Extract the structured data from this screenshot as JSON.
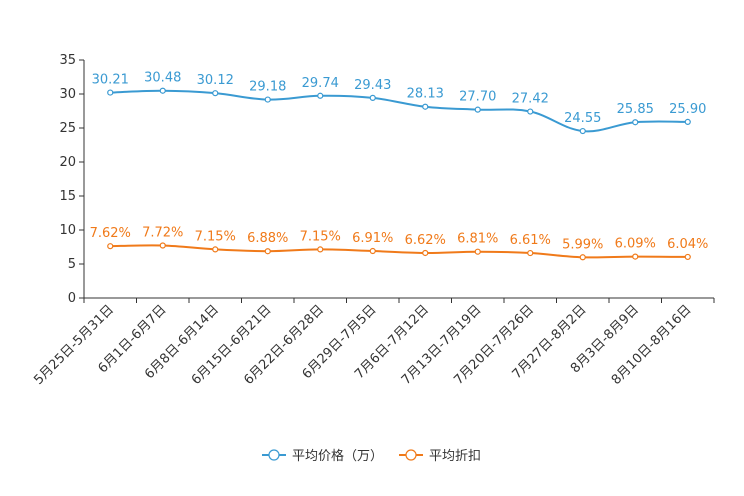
{
  "chart_data": {
    "type": "line",
    "title": "",
    "xlabel": "",
    "ylabel": "",
    "ylim": [
      0,
      35
    ],
    "yticks": [
      0,
      5,
      10,
      15,
      20,
      25,
      30,
      35
    ],
    "grid": false,
    "legend_position": "bottom-center",
    "categories": [
      "5月25日-5月31日",
      "6月1日-6月7日",
      "6月8日-6月14日",
      "6月15日-6月21日",
      "6月22日-6月28日",
      "6月29日-7月5日",
      "7月6日-7月12日",
      "7月13日-7月19日",
      "7月20日-7月26日",
      "7月27日-8月2日",
      "8月3日-8月9日",
      "8月10日-8月16日"
    ],
    "series": [
      {
        "name": "平均价格（万）",
        "color": "#3a9ad2",
        "values": [
          30.21,
          30.48,
          30.12,
          29.18,
          29.74,
          29.43,
          28.13,
          27.7,
          27.42,
          24.55,
          25.85,
          25.9
        ],
        "labels": [
          "30.21",
          "30.48",
          "30.12",
          "29.18",
          "29.74",
          "29.43",
          "28.13",
          "27.70",
          "27.42",
          "24.55",
          "25.85",
          "25.90"
        ]
      },
      {
        "name": "平均折扣",
        "color": "#f07a1a",
        "values": [
          7.62,
          7.72,
          7.15,
          6.88,
          7.15,
          6.91,
          6.62,
          6.81,
          6.61,
          5.99,
          6.09,
          6.04
        ],
        "labels": [
          "7.62%",
          "7.72%",
          "7.15%",
          "6.88%",
          "7.15%",
          "6.91%",
          "6.62%",
          "6.81%",
          "6.61%",
          "5.99%",
          "6.09%",
          "6.04%"
        ]
      }
    ]
  }
}
